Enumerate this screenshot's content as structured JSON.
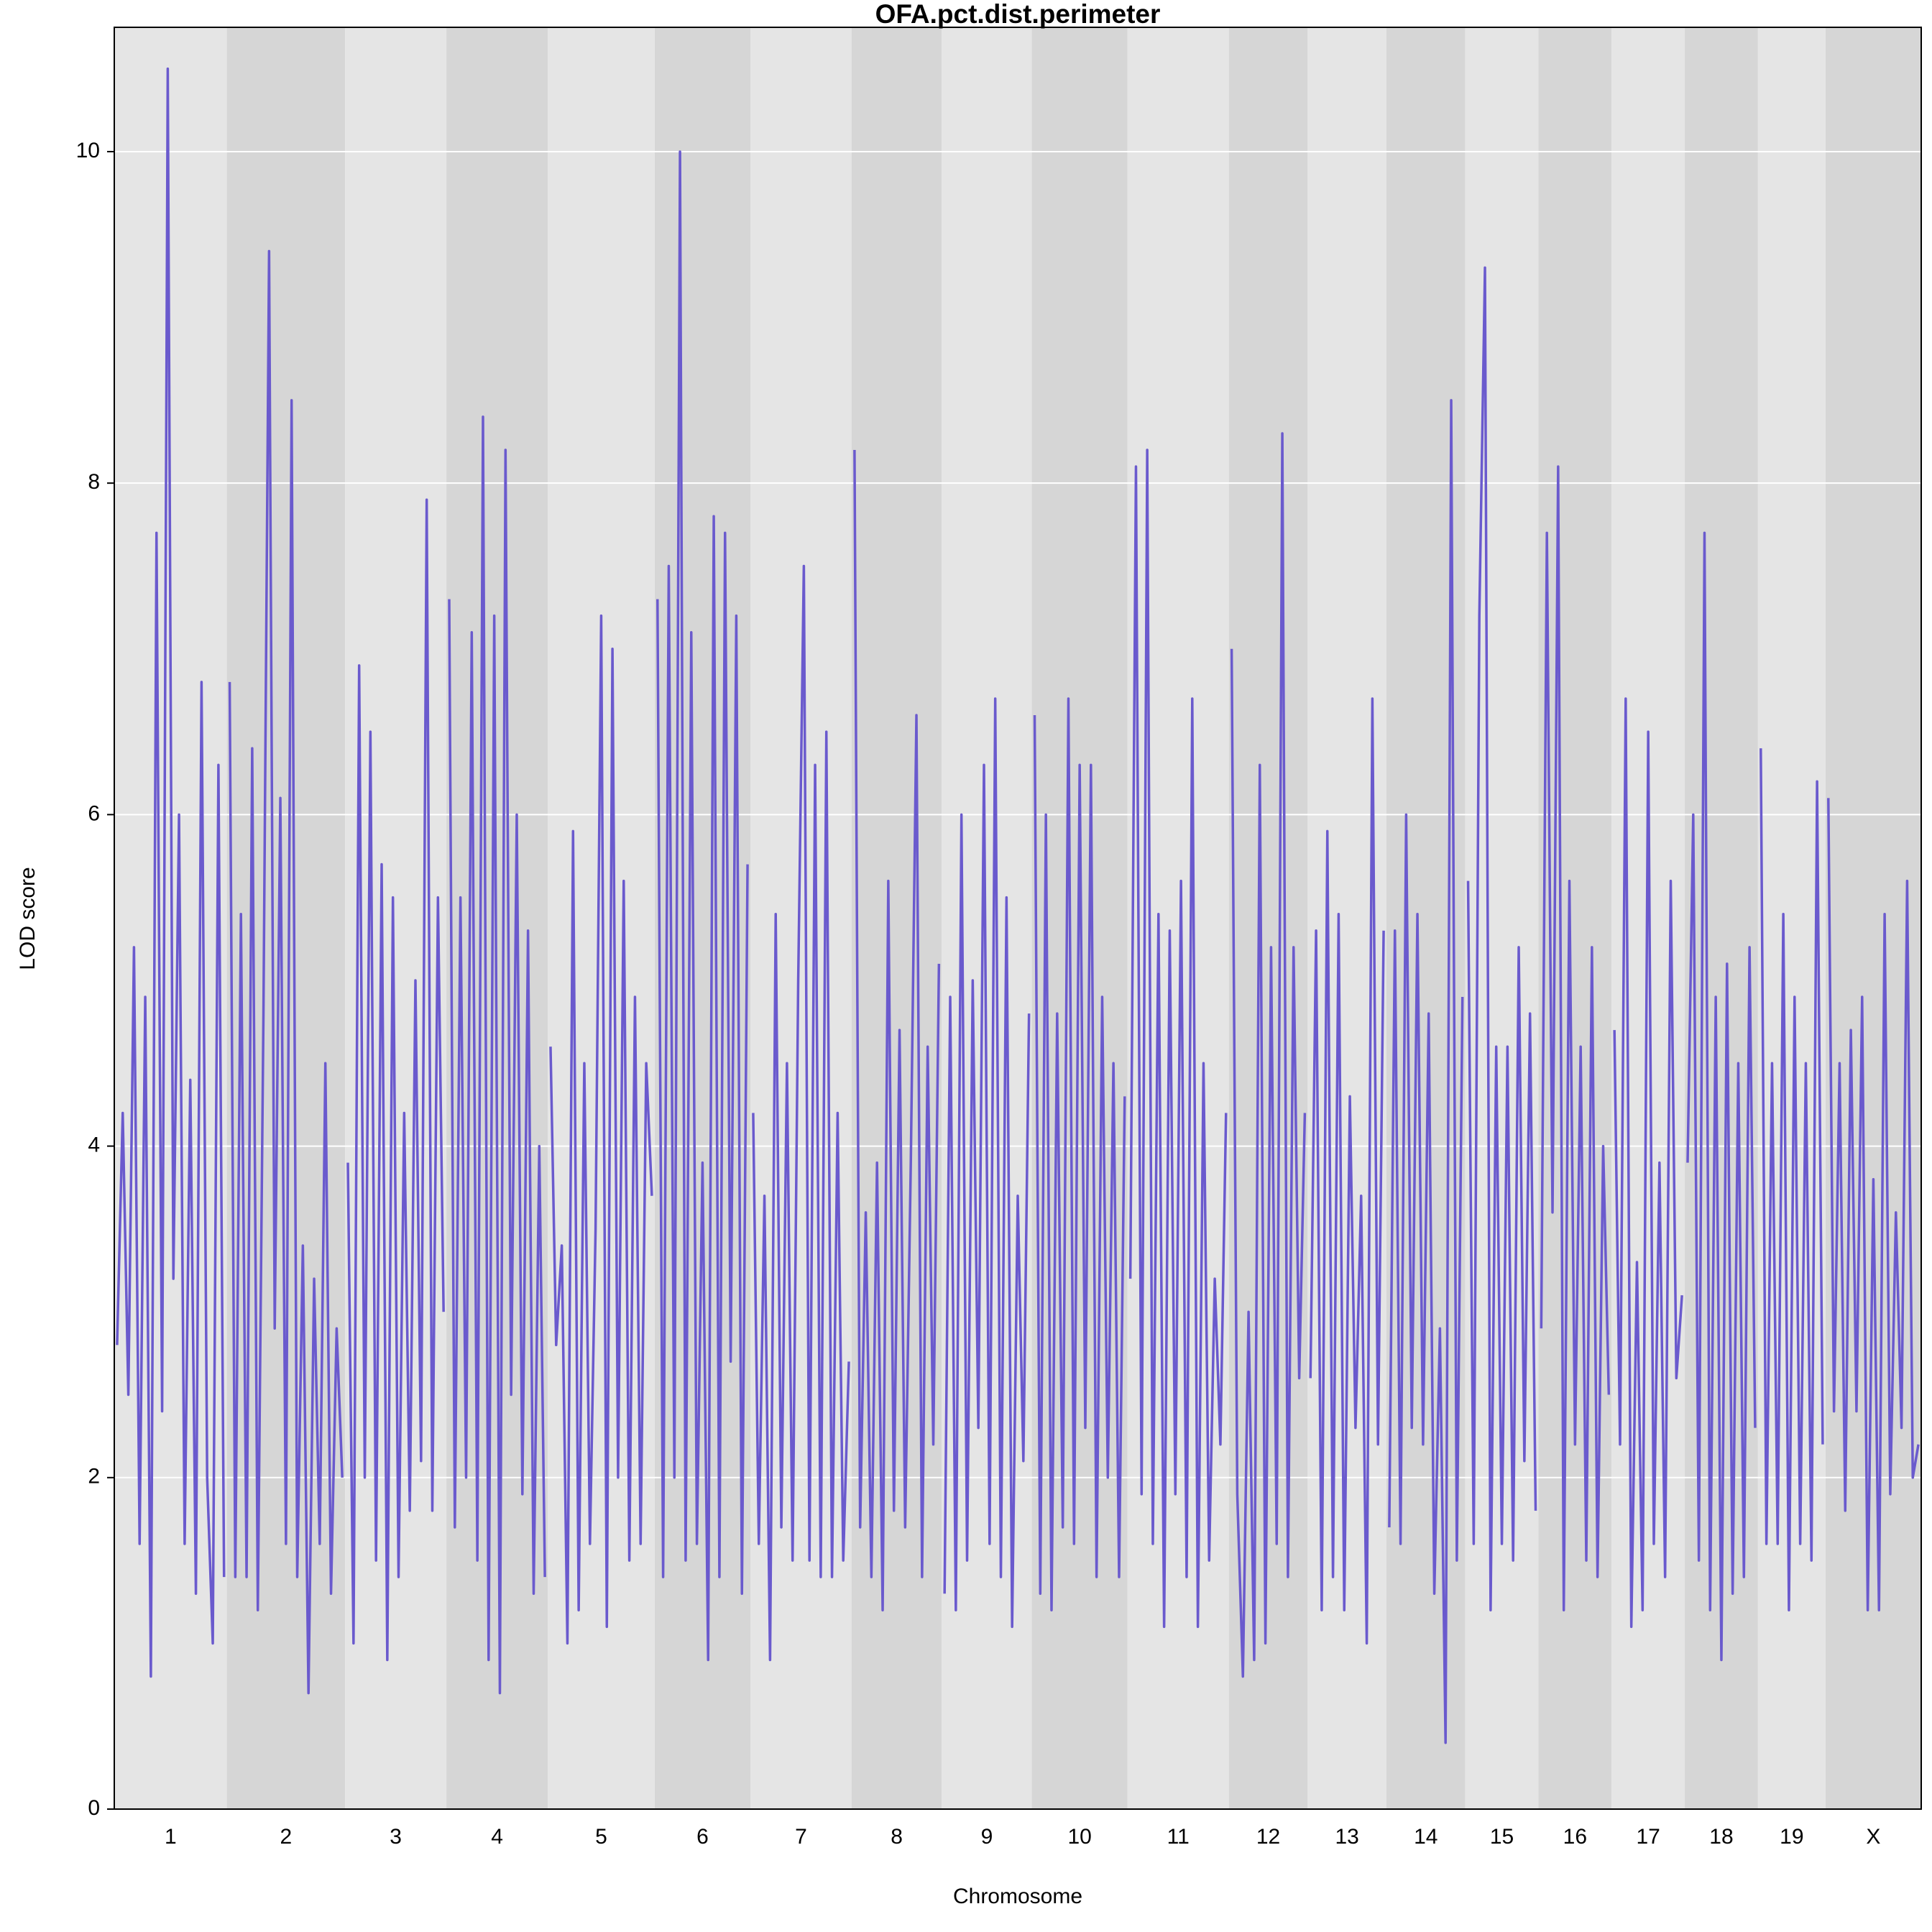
{
  "chart_data": {
    "type": "lod",
    "title": "OFA.pct.dist.perimeter",
    "xlabel": "Chromosome",
    "ylabel": "LOD score",
    "color": "#6a5acd",
    "ylim": [
      0,
      10.75
    ],
    "yticks": [
      0,
      2,
      4,
      6,
      8,
      10
    ],
    "grid": true,
    "series": [
      {
        "name": "1",
        "values": [
          2.8,
          4.2,
          2.5,
          5.2,
          1.6,
          4.9,
          0.8,
          7.7,
          2.4,
          10.5,
          3.2,
          6.0,
          1.6,
          4.4,
          1.3,
          6.8,
          2.0,
          1.0,
          6.3,
          1.4
        ]
      },
      {
        "name": "2",
        "values": [
          6.8,
          1.4,
          5.4,
          1.4,
          6.4,
          1.2,
          4.8,
          9.4,
          2.9,
          6.1,
          1.6,
          8.5,
          1.4,
          3.4,
          0.7,
          3.2,
          1.6,
          4.5,
          1.3,
          2.9,
          2.0
        ]
      },
      {
        "name": "3",
        "values": [
          3.9,
          1.0,
          6.9,
          2.0,
          6.5,
          1.5,
          5.7,
          0.9,
          5.5,
          1.4,
          4.2,
          1.8,
          5.0,
          2.1,
          7.9,
          1.8,
          5.5,
          3.0
        ]
      },
      {
        "name": "4",
        "values": [
          7.3,
          1.7,
          5.5,
          2.0,
          7.1,
          1.5,
          8.4,
          0.9,
          7.2,
          0.7,
          8.2,
          2.5,
          6.0,
          1.9,
          5.3,
          1.3,
          4.0,
          1.4
        ]
      },
      {
        "name": "5",
        "values": [
          4.6,
          2.8,
          3.4,
          1.0,
          5.9,
          1.2,
          4.5,
          1.6,
          3.5,
          7.2,
          1.1,
          7.0,
          2.0,
          5.6,
          1.5,
          4.9,
          1.6,
          4.5,
          3.7
        ]
      },
      {
        "name": "6",
        "values": [
          7.3,
          1.4,
          7.5,
          2.0,
          10.0,
          1.5,
          7.1,
          1.6,
          3.9,
          0.9,
          7.8,
          1.4,
          7.7,
          2.7,
          7.2,
          1.3,
          5.7
        ]
      },
      {
        "name": "7",
        "values": [
          4.2,
          1.6,
          3.7,
          0.9,
          5.4,
          1.7,
          4.5,
          1.5,
          5.0,
          7.5,
          1.5,
          6.3,
          1.4,
          6.5,
          1.4,
          4.2,
          1.5,
          2.7
        ]
      },
      {
        "name": "8",
        "values": [
          8.2,
          1.7,
          3.6,
          1.4,
          3.9,
          1.2,
          5.6,
          1.8,
          4.7,
          1.7,
          3.9,
          6.6,
          1.4,
          4.6,
          2.2,
          5.1
        ]
      },
      {
        "name": "9",
        "values": [
          1.3,
          4.9,
          1.2,
          6.0,
          1.5,
          5.0,
          2.3,
          6.3,
          1.6,
          6.7,
          1.4,
          5.5,
          1.1,
          3.7,
          2.1,
          4.8
        ]
      },
      {
        "name": "10",
        "values": [
          6.6,
          1.3,
          6.0,
          1.2,
          4.8,
          1.7,
          6.7,
          1.6,
          6.3,
          2.3,
          6.3,
          1.4,
          4.9,
          2.0,
          4.5,
          1.4,
          4.3
        ]
      },
      {
        "name": "11",
        "values": [
          3.2,
          8.1,
          1.9,
          8.2,
          1.6,
          5.4,
          1.1,
          5.3,
          1.9,
          5.6,
          1.4,
          6.7,
          1.1,
          4.5,
          1.5,
          3.2,
          2.2,
          4.2
        ]
      },
      {
        "name": "12",
        "values": [
          7.0,
          1.9,
          0.8,
          3.0,
          0.9,
          6.3,
          1.0,
          5.2,
          1.6,
          8.3,
          1.4,
          5.2,
          2.6,
          4.2
        ]
      },
      {
        "name": "13",
        "values": [
          2.6,
          5.3,
          1.2,
          5.9,
          1.4,
          5.4,
          1.2,
          4.3,
          2.3,
          3.7,
          1.0,
          6.7,
          2.2,
          5.3
        ]
      },
      {
        "name": "14",
        "values": [
          1.7,
          5.3,
          1.6,
          6.0,
          2.3,
          5.4,
          2.2,
          4.8,
          1.3,
          2.9,
          0.4,
          8.5,
          1.5,
          4.9
        ]
      },
      {
        "name": "15",
        "values": [
          5.6,
          1.6,
          7.2,
          9.3,
          1.2,
          4.6,
          1.6,
          4.6,
          1.5,
          5.2,
          2.1,
          4.8,
          1.8
        ]
      },
      {
        "name": "16",
        "values": [
          2.9,
          7.7,
          3.6,
          8.1,
          1.2,
          5.6,
          2.2,
          4.6,
          1.5,
          5.2,
          1.4,
          4.0,
          2.5
        ]
      },
      {
        "name": "17",
        "values": [
          4.7,
          2.2,
          6.7,
          1.1,
          3.3,
          1.2,
          6.5,
          1.6,
          3.9,
          1.4,
          5.6,
          2.6,
          3.1
        ]
      },
      {
        "name": "18",
        "values": [
          3.9,
          6.0,
          1.5,
          7.7,
          1.2,
          4.9,
          0.9,
          5.1,
          1.3,
          4.5,
          1.4,
          5.2,
          2.3
        ]
      },
      {
        "name": "19",
        "values": [
          6.4,
          1.6,
          4.5,
          1.6,
          5.4,
          1.2,
          4.9,
          1.6,
          4.5,
          1.5,
          6.2,
          2.2
        ]
      },
      {
        "name": "X",
        "values": [
          6.1,
          2.4,
          4.5,
          1.8,
          4.7,
          2.4,
          4.9,
          1.2,
          3.8,
          1.2,
          5.4,
          1.9,
          3.6,
          2.3,
          5.6,
          2.0,
          2.2
        ]
      }
    ]
  }
}
